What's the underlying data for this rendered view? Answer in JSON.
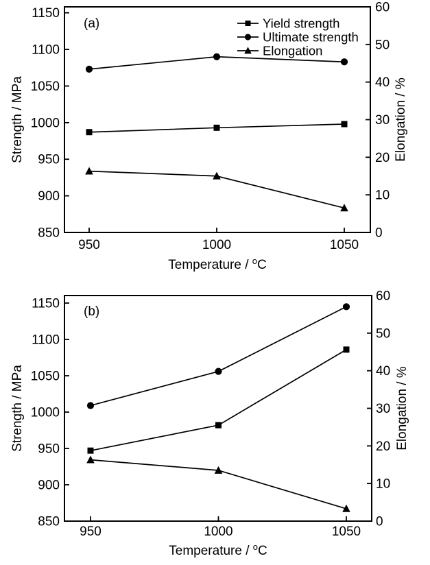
{
  "figure": {
    "background": "#ffffff",
    "ink_color": "#000000"
  },
  "chart_data": [
    {
      "type": "line",
      "panel_label": "(a)",
      "xlabel": "Temperature / °C",
      "ylabel_left": "Strength / MPa",
      "ylabel_right": "Elongation / %",
      "x": [
        950,
        1000,
        1050
      ],
      "xticks": [
        "950",
        "1000",
        "1050"
      ],
      "xlim": [
        940,
        1060
      ],
      "ylim_left": [
        850,
        1150
      ],
      "yticks_left": [
        850,
        900,
        950,
        1000,
        1050,
        1100,
        1150
      ],
      "ylim_right": [
        0,
        60
      ],
      "yticks_right": [
        0,
        10,
        20,
        30,
        40,
        50,
        60
      ],
      "grid": false,
      "legend": {
        "visible": true,
        "position": "top-right"
      },
      "series": [
        {
          "name": "Yield strength",
          "marker": "square",
          "axis": "left",
          "values": [
            987,
            993,
            998
          ]
        },
        {
          "name": "Ultimate strength",
          "marker": "circle",
          "axis": "left",
          "values": [
            1073,
            1090,
            1083
          ]
        },
        {
          "name": "Elongation",
          "marker": "triangle",
          "axis": "right",
          "values": [
            16.3,
            15.0,
            6.5
          ]
        }
      ]
    },
    {
      "type": "line",
      "panel_label": "(b)",
      "xlabel": "Temperature / °C",
      "ylabel_left": "Strength / MPa",
      "ylabel_right": "Elongation / %",
      "x": [
        950,
        1000,
        1050
      ],
      "xticks": [
        "950",
        "1000",
        "1050"
      ],
      "xlim": [
        940,
        1060
      ],
      "ylim_left": [
        850,
        1150
      ],
      "yticks_left": [
        850,
        900,
        950,
        1000,
        1050,
        1100,
        1150
      ],
      "ylim_right": [
        0,
        60
      ],
      "yticks_right": [
        0,
        10,
        20,
        30,
        40,
        50,
        60
      ],
      "grid": false,
      "legend": {
        "visible": false,
        "position": "none"
      },
      "series": [
        {
          "name": "Yield strength",
          "marker": "square",
          "axis": "left",
          "values": [
            947,
            982,
            1086
          ]
        },
        {
          "name": "Ultimate strength",
          "marker": "circle",
          "axis": "left",
          "values": [
            1009,
            1056,
            1145
          ]
        },
        {
          "name": "Elongation",
          "marker": "triangle",
          "axis": "right",
          "values": [
            16.3,
            13.5,
            3.3
          ]
        }
      ]
    }
  ]
}
